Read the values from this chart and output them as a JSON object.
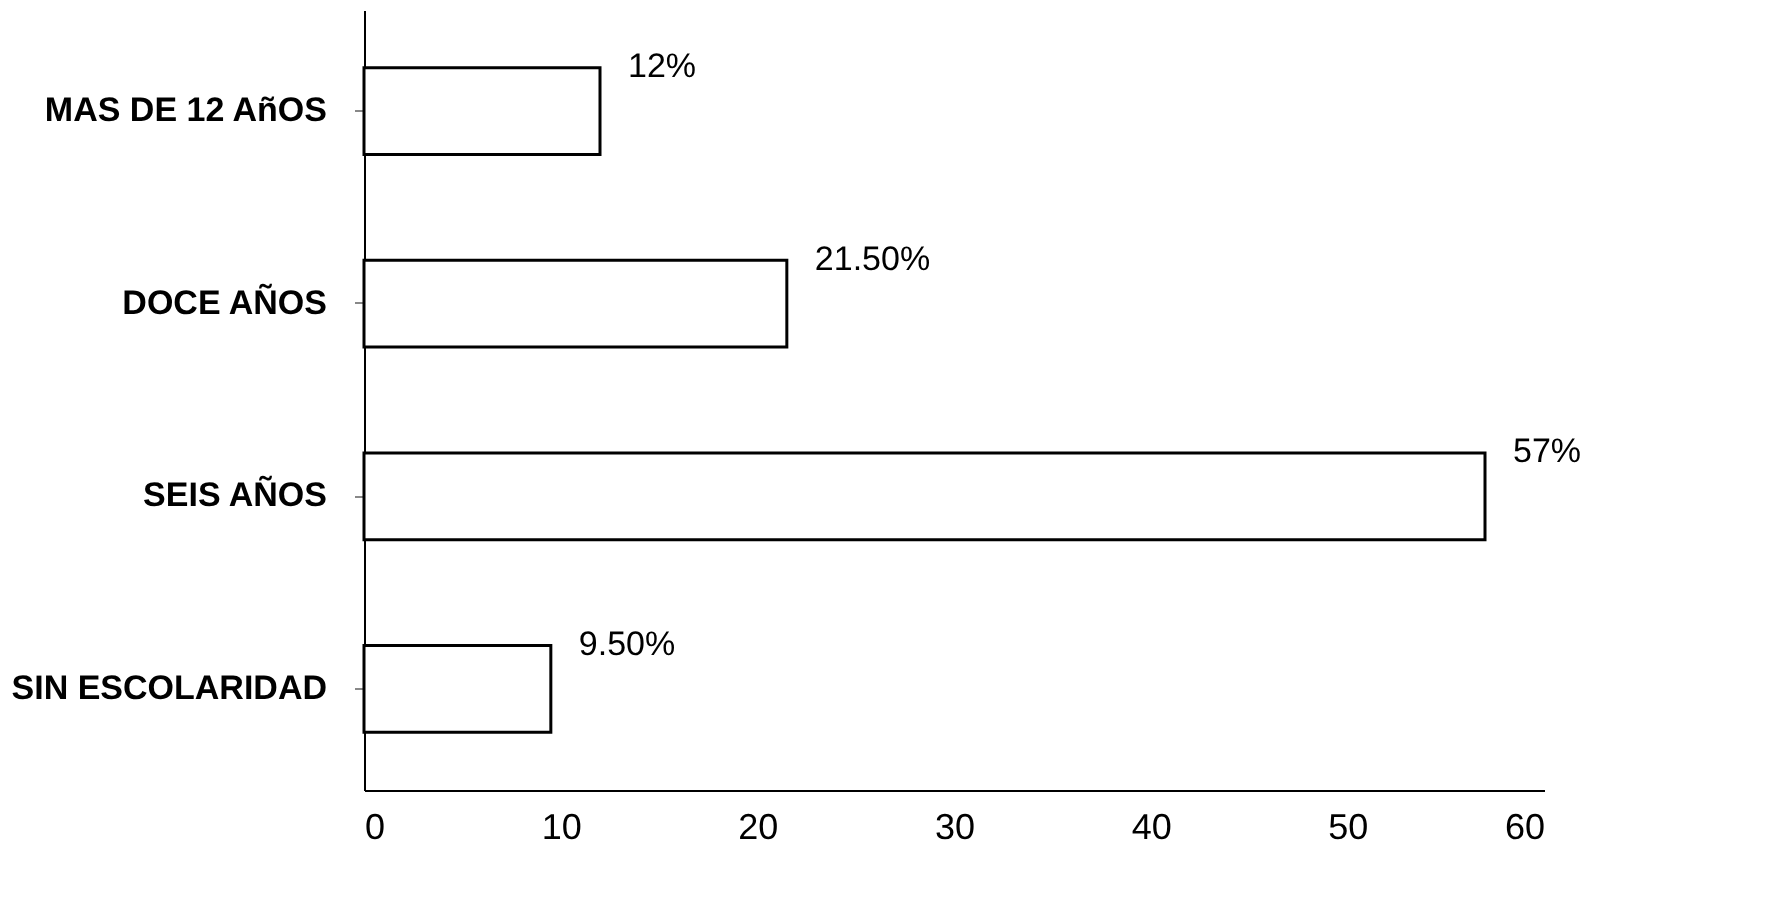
{
  "chart_data": {
    "type": "bar",
    "orientation": "horizontal",
    "categories": [
      "MAS DE 12 AñOS",
      "DOCE AÑOS",
      "SEIS AÑOS",
      "SIN ESCOLARIDAD"
    ],
    "values": [
      12,
      21.5,
      57,
      9.5
    ],
    "value_labels": [
      "12%",
      "21.50%",
      "57%",
      "9.50%"
    ],
    "color": "#ffffff",
    "xlim": [
      0,
      60
    ],
    "xticks": [
      0,
      10,
      20,
      30,
      40,
      50,
      60
    ],
    "grid": false
  }
}
